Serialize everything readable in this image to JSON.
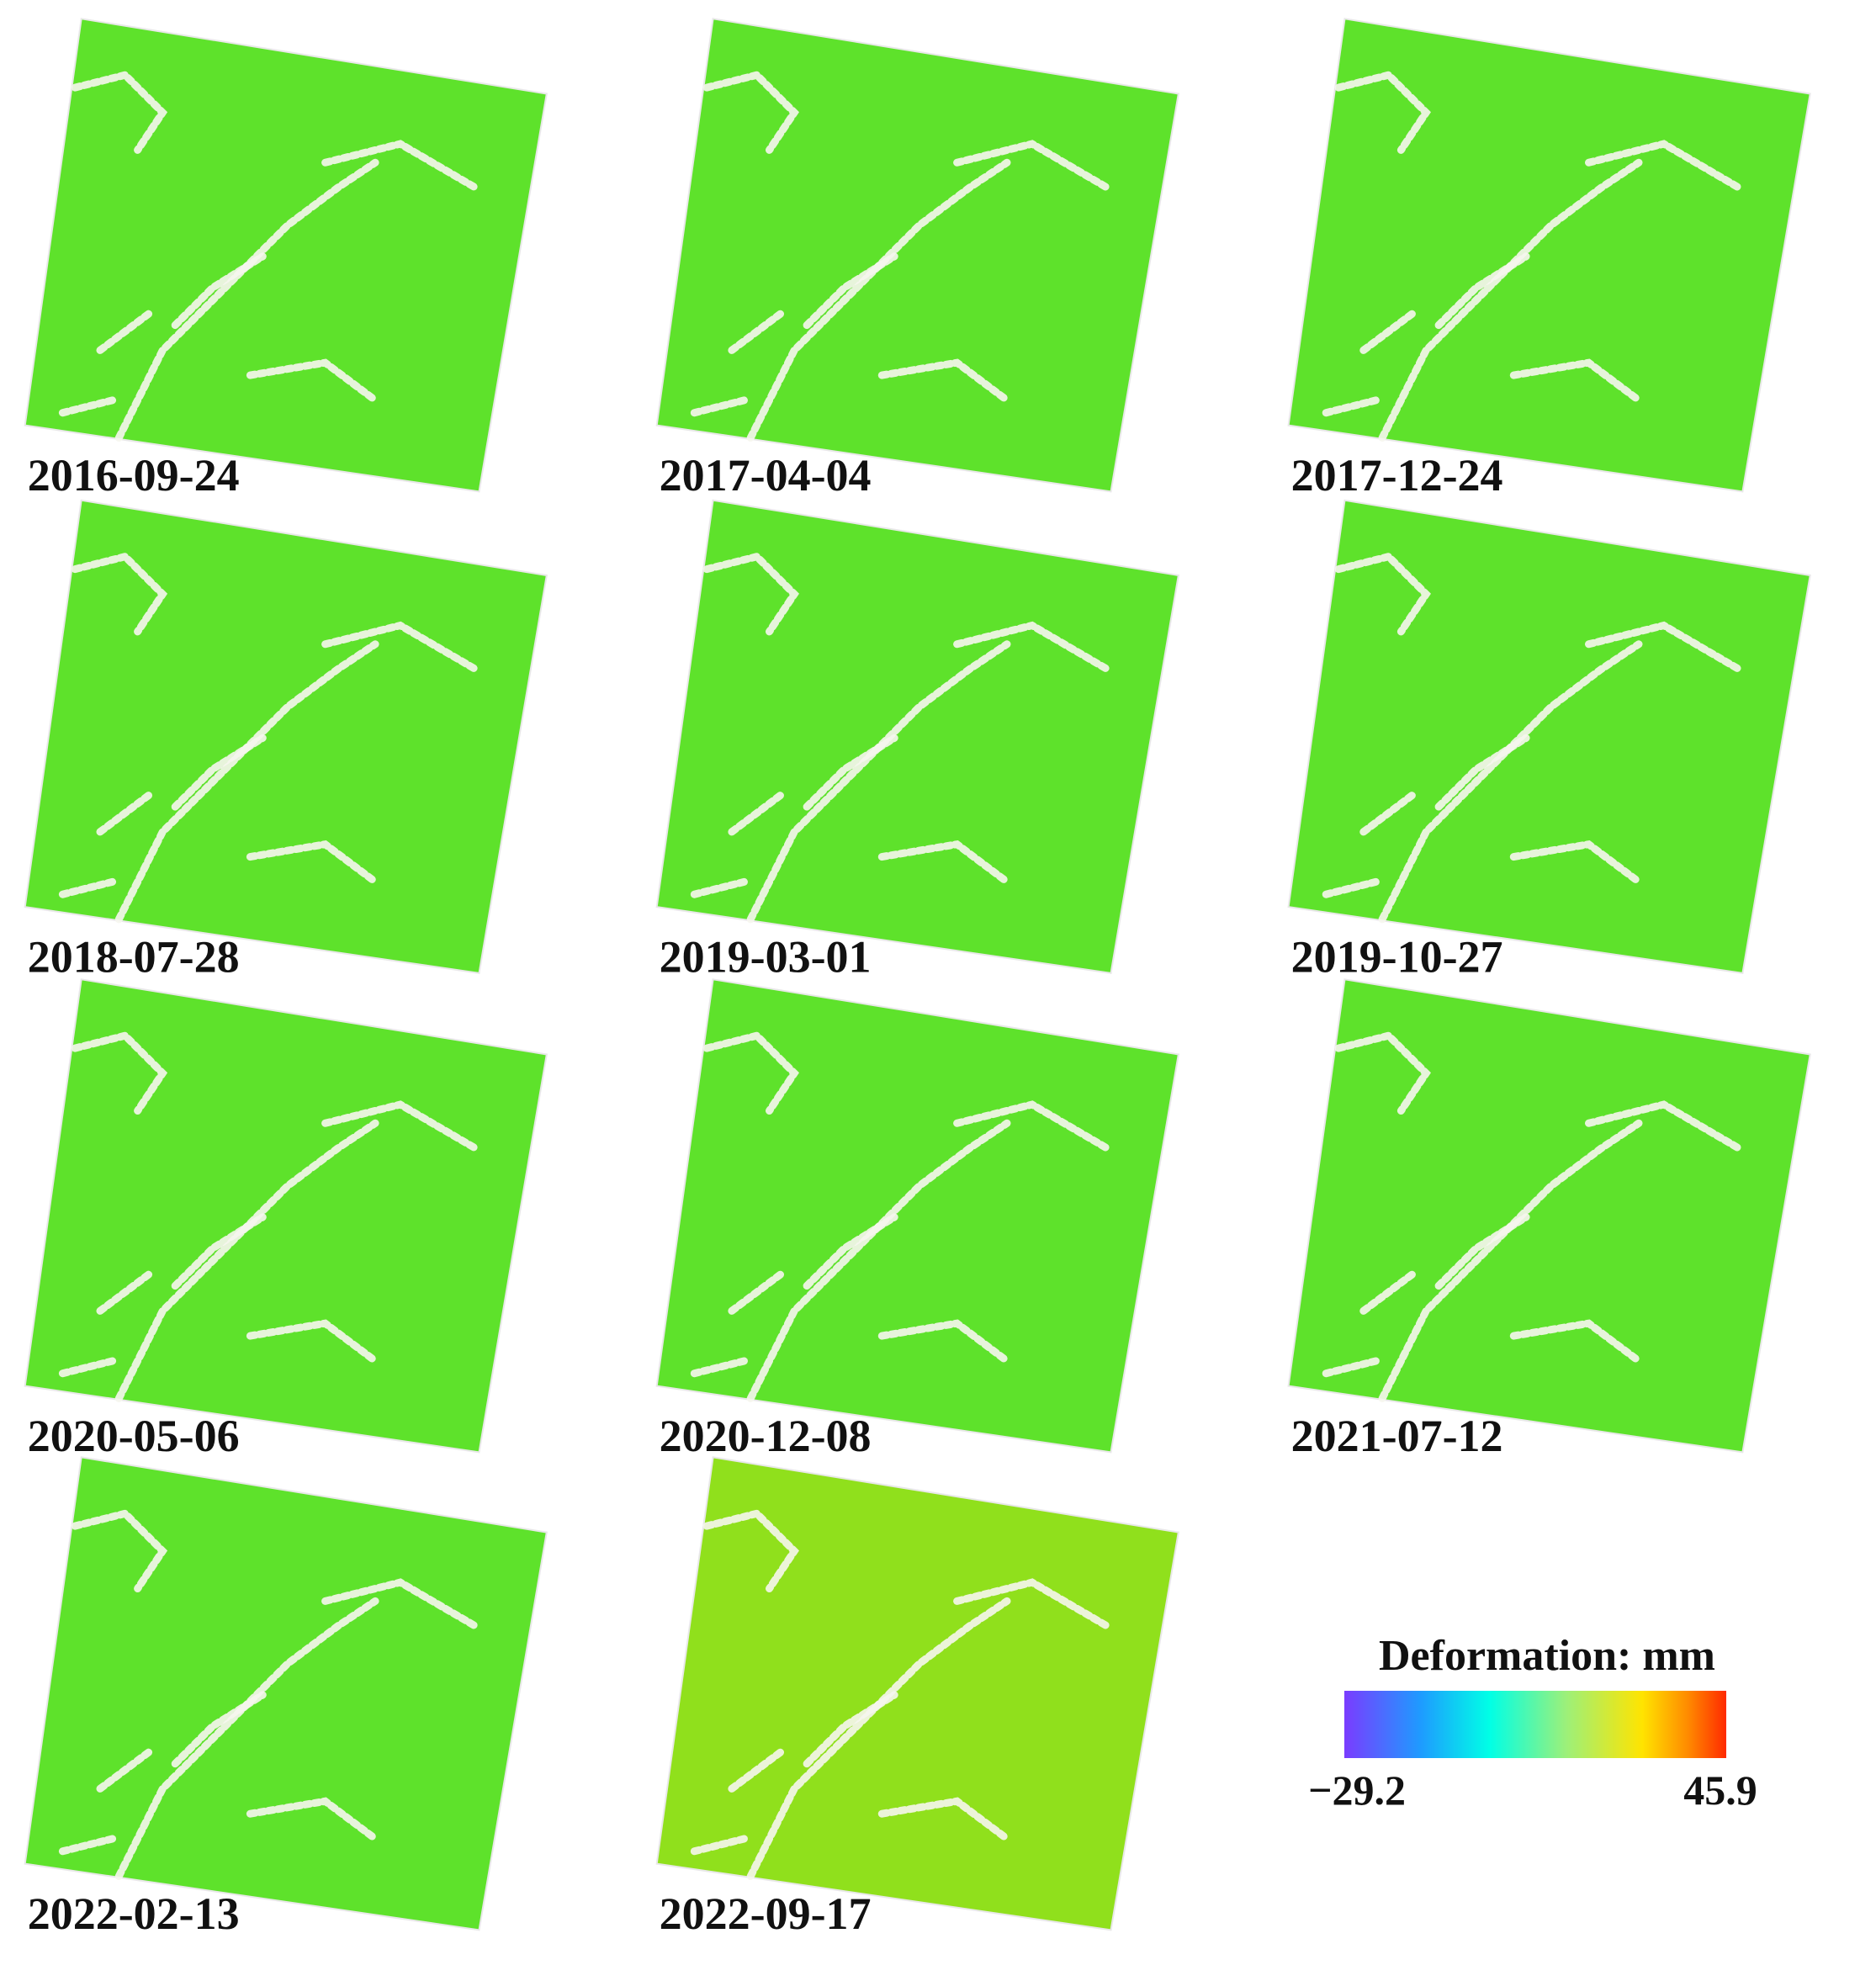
{
  "panels": [
    {
      "date": "2016-09-24"
    },
    {
      "date": "2017-04-04"
    },
    {
      "date": "2017-12-24"
    },
    {
      "date": "2018-07-28"
    },
    {
      "date": "2019-03-01"
    },
    {
      "date": "2019-10-27"
    },
    {
      "date": "2020-05-06"
    },
    {
      "date": "2020-12-08"
    },
    {
      "date": "2021-07-12"
    },
    {
      "date": "2022-02-13"
    },
    {
      "date": "2022-09-17"
    }
  ],
  "colorbar": {
    "title": "Deformation: mm",
    "min_label": "−29.2",
    "max_label": "45.9"
  }
}
